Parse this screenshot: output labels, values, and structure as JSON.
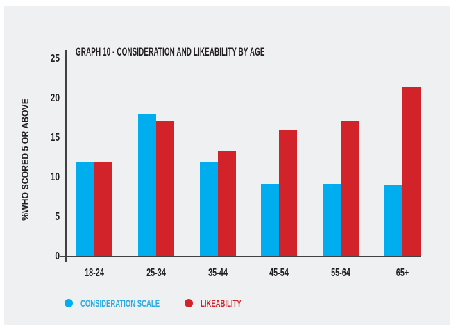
{
  "panel": {
    "background": "#eff0f2"
  },
  "chart_data": {
    "type": "bar",
    "title": "GRAPH 10 - CONSIDERATION AND LIKEABILITY BY AGE",
    "xlabel": "",
    "ylabel": "%WHO SCORED 5 OR ABOVE",
    "categories": [
      "18-24",
      "25-34",
      "35-44",
      "45-54",
      "55-64",
      "65+"
    ],
    "series": [
      {
        "name": "CONSIDERATION SCALE",
        "color": "#00aeef",
        "values": [
          12,
          18.2,
          12,
          9.3,
          9.3,
          9.2
        ]
      },
      {
        "name": "LIKEABILITY",
        "color": "#d2232b",
        "values": [
          12,
          17.2,
          13.4,
          16.1,
          17.2,
          21.5
        ]
      }
    ],
    "y_ticks": [
      0,
      5,
      10,
      15,
      20,
      25
    ],
    "ylim": [
      0,
      25
    ],
    "grid": false,
    "legend_position": "bottom-left"
  },
  "colors": {
    "consideration_bar": "#00aeef",
    "likeability_bar": "#d2232b",
    "legend_consideration_text": "#29abe2",
    "legend_likeability_text": "#d2232b",
    "axis": "#414042",
    "text": "#231f20",
    "panel_background": "#eff0f2"
  }
}
